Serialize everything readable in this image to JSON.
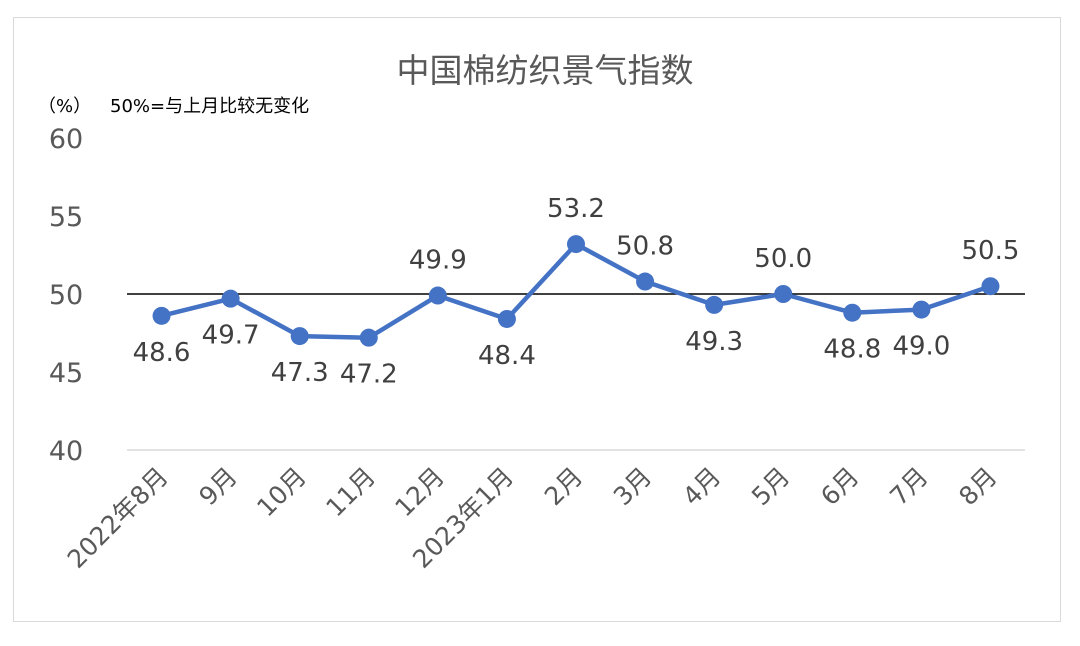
{
  "chart_data": {
    "type": "line",
    "title": "中国棉纺织景气指数",
    "unit_label": "（%）",
    "note": "50%=与上月比较无变化",
    "categories": [
      "2022年8月",
      "9月",
      "10月",
      "11月",
      "12月",
      "2023年1月",
      "2月",
      "3月",
      "4月",
      "5月",
      "6月",
      "7月",
      "8月"
    ],
    "series": [
      {
        "values": [
          48.6,
          49.7,
          47.3,
          47.2,
          49.9,
          48.4,
          53.2,
          50.8,
          49.3,
          50.0,
          48.8,
          49.0,
          50.5
        ],
        "labels": [
          "48.6",
          "49.7",
          "47.3",
          "47.2",
          "49.9",
          "48.4",
          "53.2",
          "50.8",
          "49.3",
          "50.0",
          "48.8",
          "49.0",
          "50.5"
        ],
        "label_positions": [
          "below",
          "below",
          "below",
          "below",
          "above",
          "below",
          "above",
          "above",
          "below",
          "above",
          "below",
          "below",
          "above"
        ]
      }
    ],
    "ylim": [
      40,
      60
    ],
    "yticks": [
      "60",
      "55",
      "50",
      "45",
      "40"
    ],
    "ytick_values": [
      60,
      55,
      50,
      45,
      40
    ],
    "reference_line": 50,
    "grid": false,
    "legend": "none",
    "colors": {
      "line": "#4472C4",
      "reference": "#000000",
      "axis": "#d9d9d9"
    }
  }
}
